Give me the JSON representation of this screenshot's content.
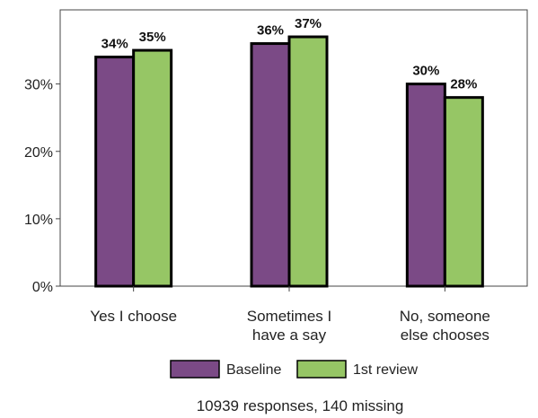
{
  "chart_data": {
    "type": "bar",
    "categories": [
      [
        "Yes I choose"
      ],
      [
        "Sometimes I",
        "have a say"
      ],
      [
        "No, someone",
        "else chooses"
      ]
    ],
    "series": [
      {
        "name": "Baseline",
        "values": [
          34,
          36,
          30
        ],
        "color": "#7b4a86"
      },
      {
        "name": "1st review",
        "values": [
          35,
          37,
          28
        ],
        "color": "#96c665"
      }
    ],
    "ylim": [
      0,
      41
    ],
    "yticks": [
      0,
      10,
      20,
      30
    ],
    "ytick_suffix": "%",
    "data_label_suffix": "%",
    "legend": "bottom",
    "grid": false
  },
  "footnote": "10939 responses, 140 missing"
}
